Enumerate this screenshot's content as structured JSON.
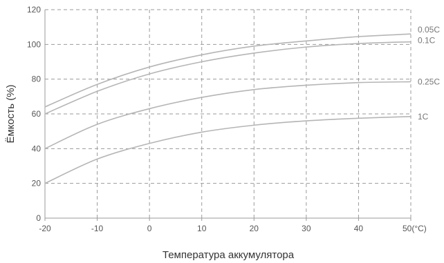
{
  "chart_data": {
    "type": "line",
    "title": "",
    "xlabel": "Температура аккумулятора",
    "ylabel": "Ёмкость (%)",
    "x_ticks": [
      "-20",
      "-10",
      "0",
      "10",
      "20",
      "30",
      "40",
      "50(°C)"
    ],
    "x_tick_values": [
      -20,
      -10,
      0,
      10,
      20,
      30,
      40,
      50
    ],
    "y_ticks": [
      "0",
      "20",
      "40",
      "60",
      "80",
      "100",
      "120"
    ],
    "y_tick_values": [
      0,
      20,
      40,
      60,
      80,
      100,
      120
    ],
    "xlim": [
      -20,
      50
    ],
    "ylim": [
      0,
      120
    ],
    "grid": true,
    "legend": "series labels at right end of lines",
    "x": [
      -20,
      -10,
      0,
      10,
      20,
      30,
      40,
      50
    ],
    "series": [
      {
        "name": "0.05C",
        "values": [
          64,
          77,
          87,
          94,
          99,
          102,
          104.5,
          106
        ]
      },
      {
        "name": "0.1C",
        "values": [
          60,
          73,
          83,
          90,
          95,
          98.5,
          100.5,
          101.5
        ]
      },
      {
        "name": "0.25C",
        "values": [
          40,
          54,
          63,
          69.5,
          74,
          76.5,
          78,
          78.5
        ]
      },
      {
        "name": "1C",
        "values": [
          20,
          34,
          43,
          49.5,
          53.5,
          56,
          57.5,
          58.5
        ]
      }
    ],
    "line_color": "#b5b5b5",
    "grid_color": "#9a9a9a"
  }
}
